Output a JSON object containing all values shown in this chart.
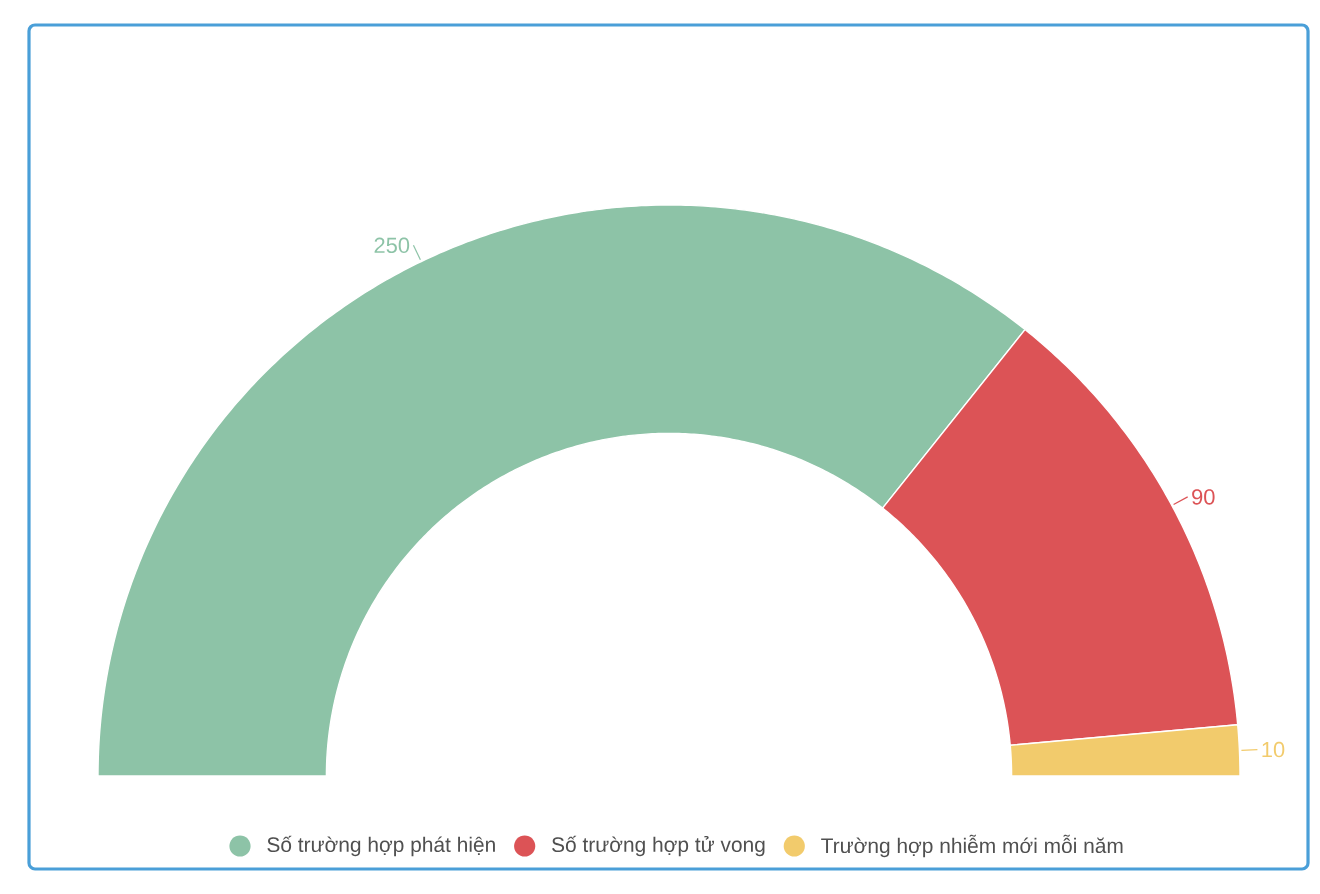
{
  "chart_data": {
    "type": "donut",
    "categories": [
      "Số trường hợp phát hiện",
      "Số trường hợp tử vong",
      "Trường hợp nhiễm mới mỗi năm"
    ],
    "values": [
      250,
      90,
      10
    ],
    "colors": [
      "#8dc3a7",
      "#dc5356",
      "#f2cb6c"
    ],
    "data_labels": true,
    "legend": "bottom"
  }
}
